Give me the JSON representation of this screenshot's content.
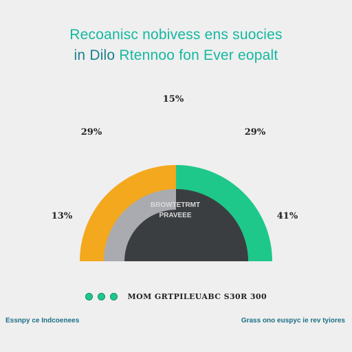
{
  "title": {
    "line1": "Recoanisc nobivess ens suocies",
    "line2_prefix": "in Dilo",
    "line2_rest": "Rtennoo fon Ever eopalt"
  },
  "chart_data": {
    "type": "pie",
    "variant": "semicircle-donut",
    "slices": [
      {
        "label": "29%",
        "value": 29,
        "color": "#f4a81e"
      },
      {
        "label": "29%",
        "value": 29,
        "color": "#1ec88a"
      },
      {
        "label": "13%",
        "value": 13,
        "color": "#a9abb0"
      }
    ],
    "top_label": "15%",
    "left_labels": [
      "29%",
      "13%"
    ],
    "right_labels": [
      "29%",
      "41%"
    ],
    "center_text": [
      "BROWTETRMT",
      "PRAVEEE"
    ],
    "colors": {
      "orange": "#f4a81e",
      "green": "#1ec88a",
      "gray": "#a9abb0",
      "dark": "#3b3e41"
    }
  },
  "legend": {
    "text": "MOM GRTPILEUABC S30R 300"
  },
  "footer": {
    "left": "Essnpy ce Indcoenees",
    "right": "Grass ono euspyc ie rev tyiores"
  }
}
